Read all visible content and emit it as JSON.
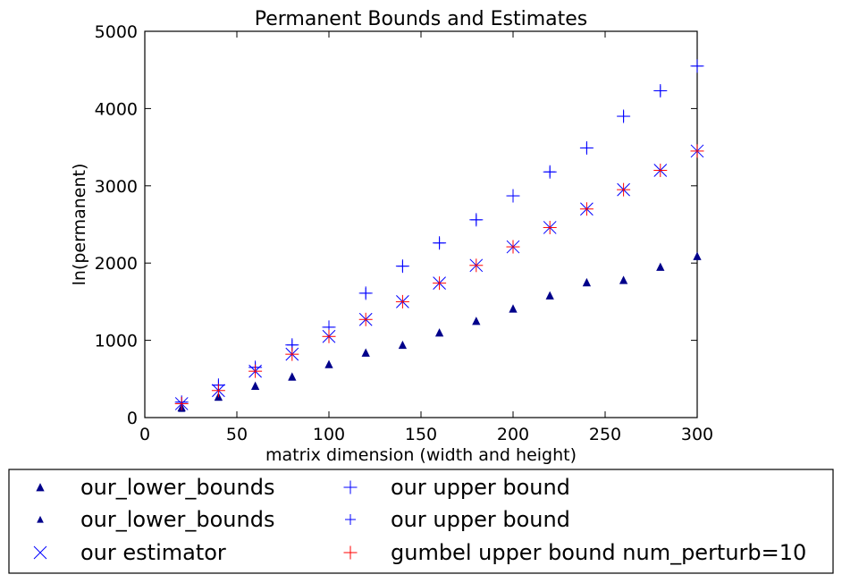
{
  "chart_data": {
    "type": "scatter",
    "title": "Permanent Bounds and Estimates",
    "xlabel": "matrix dimension (width and height)",
    "ylabel": "ln(permanent)",
    "xlim": [
      0,
      300
    ],
    "ylim": [
      0,
      5000
    ],
    "xticks": [
      "0",
      "50",
      "100",
      "150",
      "200",
      "250",
      "300"
    ],
    "yticks": [
      "0",
      "1000",
      "2000",
      "3000",
      "4000",
      "5000"
    ],
    "grid": false,
    "legend_placement": "below plot, two columns",
    "x": [
      20,
      40,
      60,
      80,
      100,
      120,
      140,
      160,
      180,
      200,
      220,
      240,
      260,
      280,
      300
    ],
    "series": [
      {
        "name": "our_lower_bounds",
        "marker": "triangle-up",
        "color": "#00008b",
        "values": [
          130,
          270,
          410,
          530,
          690,
          840,
          940,
          1100,
          1250,
          1410,
          1580,
          1750,
          1780,
          1950,
          2090
        ]
      },
      {
        "name": "our_lower_bounds",
        "marker": "triangle-up-small",
        "color": "#00008b",
        "values": [
          115,
          260,
          400,
          520,
          685,
          835,
          935,
          1095,
          1245,
          1405,
          1575,
          1745,
          1775,
          1945,
          2085
        ]
      },
      {
        "name": "our estimator",
        "marker": "x",
        "color": "#0000ff",
        "values": [
          180,
          350,
          600,
          820,
          1050,
          1270,
          1500,
          1740,
          1970,
          2210,
          2460,
          2700,
          2950,
          3200,
          3450
        ]
      },
      {
        "name": "our upper bound",
        "marker": "plus",
        "color": "#0000ff",
        "values": [
          200,
          420,
          650,
          940,
          1170,
          1610,
          1960,
          2260,
          2560,
          2870,
          3180,
          3490,
          3900,
          4230,
          4550
        ]
      },
      {
        "name": "our upper bound",
        "marker": "plus-small",
        "color": "#0000ff",
        "values": [
          200,
          420,
          650,
          940,
          1170,
          1610,
          1960,
          2260,
          2560,
          2870,
          3180,
          3490,
          3900,
          4230,
          4550
        ]
      },
      {
        "name": "gumbel upper bound num_perturb=10",
        "marker": "plus",
        "color": "#ff0000",
        "values": [
          180,
          350,
          600,
          820,
          1050,
          1270,
          1500,
          1740,
          1970,
          2210,
          2460,
          2700,
          2950,
          3200,
          3450
        ]
      }
    ]
  }
}
